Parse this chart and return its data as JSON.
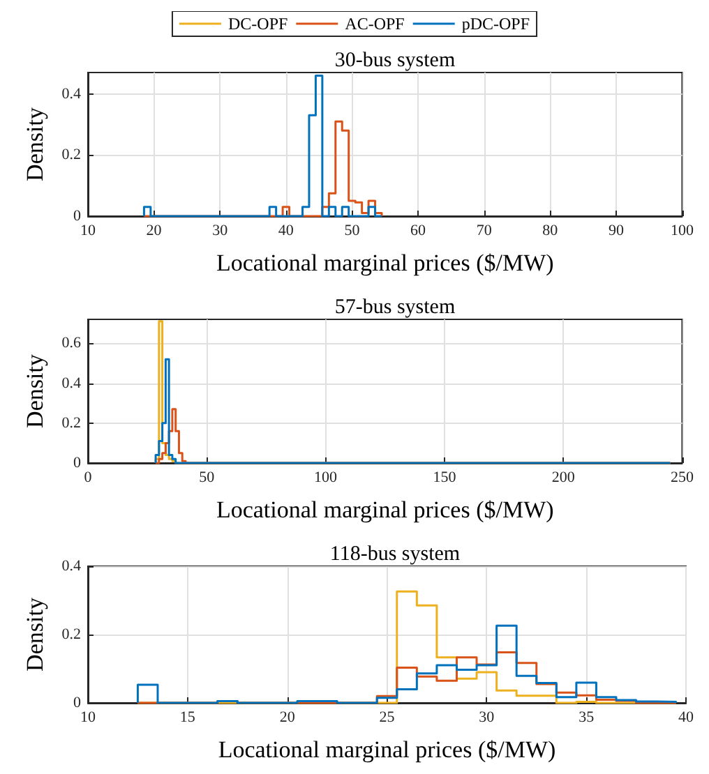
{
  "chart_data": [
    {
      "type": "histogram",
      "title": "30-bus system",
      "xlabel": "Locational marginal prices ($/MW)",
      "ylabel": "Density",
      "legend": "top",
      "grid": true,
      "bins": [
        18.5,
        19.5,
        20.5,
        21.5,
        22.5,
        23.5,
        24.5,
        25.5,
        26.5,
        27.5,
        28.5,
        29.5,
        30.5,
        31.5,
        32.5,
        33.5,
        34.5,
        35.5,
        36.5,
        37.5,
        38.5,
        39.5,
        40.5,
        41.5,
        42.5,
        43.5,
        44.5,
        45.5,
        46.5,
        47.5,
        48.5,
        49.5,
        50.5,
        51.5,
        52.5,
        53.5,
        54.5
      ],
      "series": [
        {
          "name": "AC-OPF",
          "color": "#d95319",
          "values": [
            0,
            0,
            0,
            0,
            0,
            0,
            0,
            0,
            0,
            0,
            0,
            0,
            0,
            0,
            0,
            0,
            0,
            0,
            0,
            0,
            0,
            0.03,
            0,
            0,
            0,
            0,
            0,
            0.03,
            0.075,
            0.31,
            0.28,
            0.05,
            0.045,
            0.01,
            0.05,
            0.01
          ]
        },
        {
          "name": "pDC-OPF",
          "color": "#0072bd",
          "values": [
            0.03,
            0,
            0,
            0,
            0,
            0,
            0,
            0,
            0,
            0,
            0,
            0,
            0,
            0,
            0,
            0,
            0,
            0,
            0,
            0.03,
            0,
            0,
            0,
            0,
            0.03,
            0.33,
            0.46,
            0,
            0.03,
            0,
            0.03,
            0,
            0,
            0,
            0.03,
            0
          ]
        }
      ],
      "xlim": [
        10,
        100
      ],
      "xticks": [
        10,
        20,
        30,
        40,
        50,
        60,
        70,
        80,
        90,
        100
      ],
      "ylim": [
        0,
        0.47
      ],
      "yticks": [
        0,
        0.2,
        0.4
      ]
    },
    {
      "type": "histogram",
      "title": "57-bus system",
      "xlabel": "Locational marginal prices ($/MW)",
      "ylabel": "Density",
      "grid": true,
      "bins": [
        28.5,
        29.9,
        31.3,
        32.7,
        34.1,
        35.5,
        36.9,
        38.3,
        39.7,
        41.1,
        245
      ],
      "series": [
        {
          "name": "DC-OPF",
          "color": "#edb120",
          "values": [
            0.02,
            0.71,
            0.1,
            0.04,
            0.02,
            0.01,
            0,
            0,
            0,
            0
          ]
        },
        {
          "name": "AC-OPF",
          "color": "#d95319",
          "values": [
            0,
            0.02,
            0.05,
            0.1,
            0.16,
            0.27,
            0.16,
            0.05,
            0.01,
            0
          ]
        },
        {
          "name": "pDC-OPF",
          "color": "#0072bd",
          "values": [
            0.04,
            0.11,
            0.2,
            0.52,
            0.04,
            0.02,
            0,
            0,
            0,
            0
          ]
        }
      ],
      "xlim": [
        0,
        250
      ],
      "xticks": [
        0,
        50,
        100,
        150,
        200,
        250
      ],
      "ylim": [
        0,
        0.72
      ],
      "yticks": [
        0,
        0.2,
        0.4,
        0.6
      ]
    },
    {
      "type": "histogram",
      "title": "118-bus system",
      "xlabel": "Locational marginal prices ($/MW)",
      "ylabel": "Density",
      "grid": true,
      "bins": [
        12.5,
        13.5,
        14.5,
        15.5,
        16.5,
        17.5,
        18.5,
        19.5,
        20.5,
        21.5,
        22.5,
        23.5,
        24.5,
        25.5,
        26.5,
        27.5,
        28.5,
        29.5,
        30.5,
        31.5,
        32.5,
        33.5,
        34.5,
        35.5,
        36.5,
        37.5,
        38.5,
        39.5
      ],
      "series": [
        {
          "name": "DC-OPF",
          "color": "#edb120",
          "values": [
            0,
            0,
            0,
            0,
            0,
            0,
            0,
            0,
            0,
            0,
            0,
            0,
            0,
            0.326,
            0.285,
            0.133,
            0.071,
            0.09,
            0.036,
            0.021,
            0.021,
            0,
            0.003,
            0,
            0,
            0,
            0
          ]
        },
        {
          "name": "AC-OPF",
          "color": "#d95319",
          "values": [
            0,
            0,
            0,
            0,
            0.005,
            0,
            0,
            0,
            0,
            0,
            0,
            0,
            0.02,
            0.103,
            0.077,
            0.065,
            0.133,
            0.112,
            0.148,
            0.117,
            0.055,
            0.03,
            0.022,
            0.009,
            0.006,
            0,
            0
          ]
        },
        {
          "name": "pDC-OPF",
          "color": "#0072bd",
          "values": [
            0.053,
            0,
            0,
            0,
            0.005,
            0,
            0,
            0,
            0.005,
            0.005,
            0,
            0,
            0.015,
            0.04,
            0.086,
            0.11,
            0.097,
            0.11,
            0.226,
            0.079,
            0.058,
            0.017,
            0.059,
            0.017,
            0.008,
            0.004,
            0.003
          ]
        }
      ],
      "xlim": [
        10,
        40
      ],
      "xticks": [
        10,
        15,
        20,
        25,
        30,
        35,
        40
      ],
      "ylim": [
        0,
        0.4
      ],
      "yticks": [
        0,
        0.2,
        0.4
      ]
    }
  ]
}
